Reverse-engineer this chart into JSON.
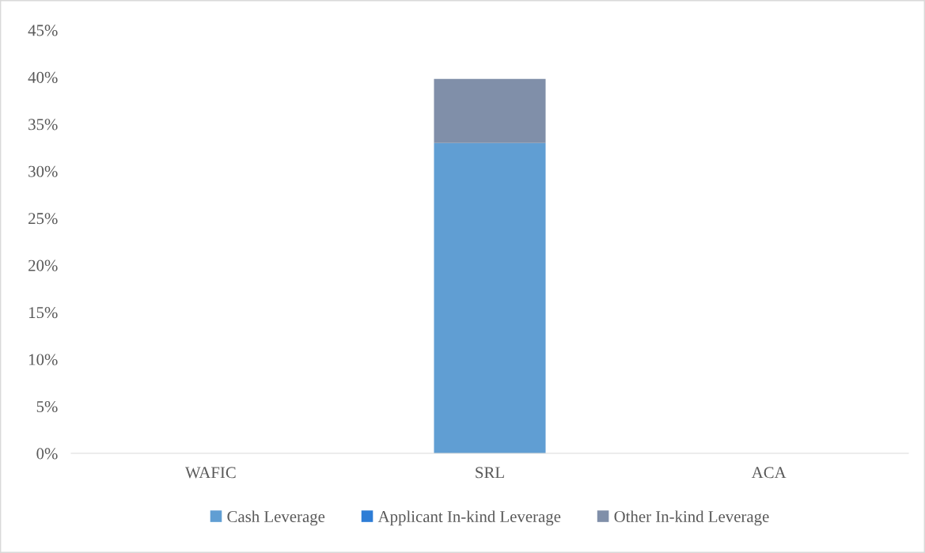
{
  "chart_data": {
    "type": "bar",
    "stacked": true,
    "categories": [
      "WAFIC",
      "SRL",
      "ACA"
    ],
    "series": [
      {
        "name": "Cash Leverage",
        "color": "#609ed3",
        "values": [
          0,
          33,
          0
        ]
      },
      {
        "name": "Applicant In-kind Leverage",
        "color": "#2e7dd6",
        "values": [
          0,
          0,
          0
        ]
      },
      {
        "name": "Other In-kind Leverage",
        "color": "#808fa9",
        "values": [
          0,
          6.8,
          0
        ]
      }
    ],
    "ylim": [
      0,
      45
    ],
    "yticks": [
      {
        "value": 0,
        "label": "0%"
      },
      {
        "value": 5,
        "label": "5%"
      },
      {
        "value": 10,
        "label": "10%"
      },
      {
        "value": 15,
        "label": "15%"
      },
      {
        "value": 20,
        "label": "20%"
      },
      {
        "value": 25,
        "label": "25%"
      },
      {
        "value": 30,
        "label": "30%"
      },
      {
        "value": 35,
        "label": "35%"
      },
      {
        "value": 40,
        "label": "40%"
      },
      {
        "value": 45,
        "label": "45%"
      }
    ],
    "grid": false,
    "legend": "bottom"
  }
}
